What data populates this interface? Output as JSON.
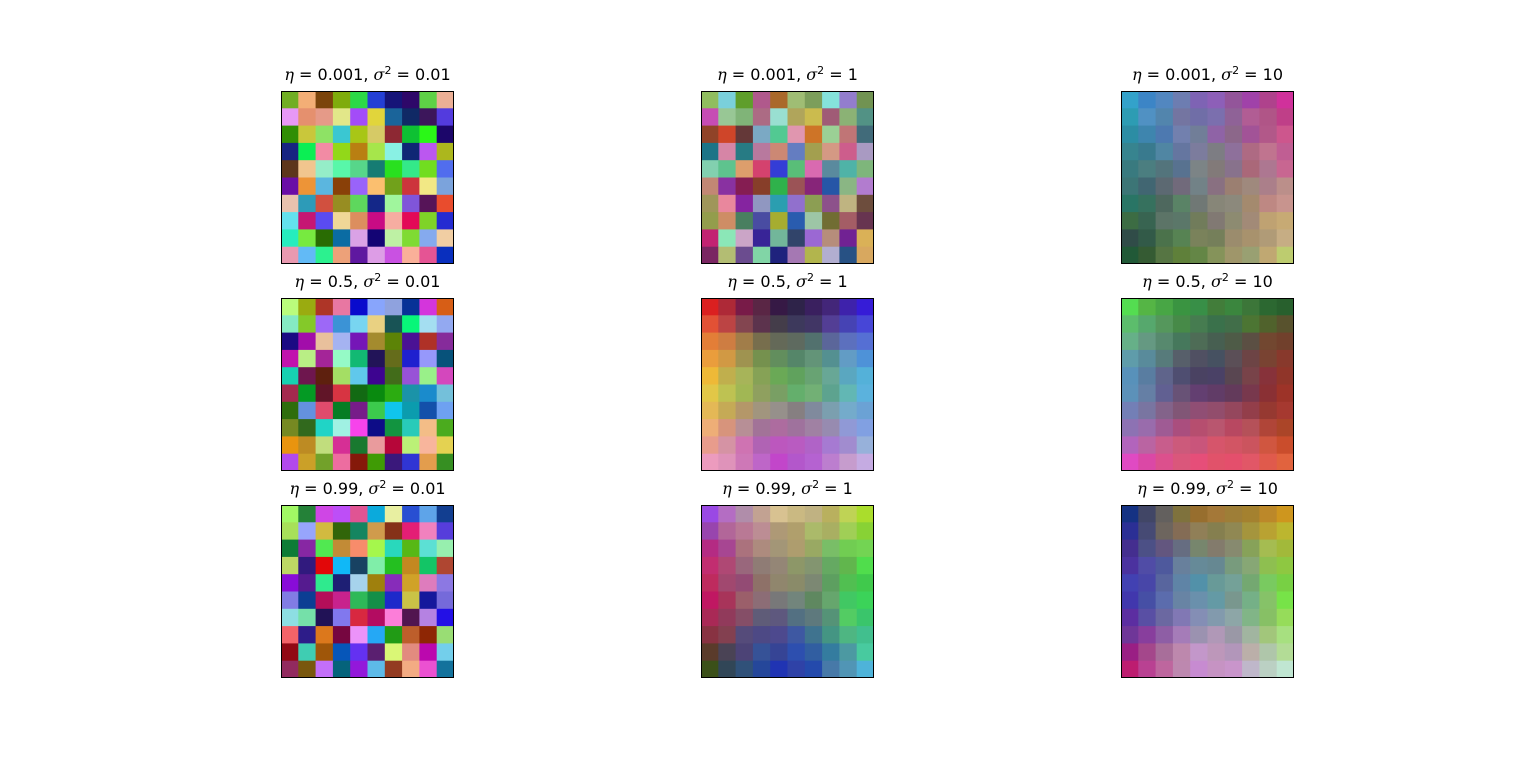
{
  "chart_data": {
    "type": "heatmap",
    "grid_size": 10,
    "panels": [
      {
        "row": 0,
        "col": 0,
        "eta": "0.001",
        "sigma2": "0.01",
        "variant": "random",
        "seed": 11
      },
      {
        "row": 0,
        "col": 1,
        "eta": "0.001",
        "sigma2": "1",
        "variant": "muted",
        "seed": 23
      },
      {
        "row": 0,
        "col": 2,
        "eta": "0.001",
        "sigma2": "10",
        "corners": {
          "tl": "#3a9ed4",
          "tr": "#c2338e",
          "bl": "#2b4e2a",
          "br": "#c7c27a"
        },
        "noise": 14,
        "seed": 37
      },
      {
        "row": 1,
        "col": 0,
        "eta": "0.5",
        "sigma2": "0.01",
        "variant": "random",
        "seed": 41
      },
      {
        "row": 1,
        "col": 1,
        "eta": "0.5",
        "sigma2": "1",
        "corners": {
          "tl": "#e02828",
          "tr": "#3b1ed0",
          "bl": "#e8a4b8",
          "br": "#c0b4e0"
        },
        "midpoints": {
          "top": "#1a1a40",
          "left": "#e8e030",
          "right": "#48c8d8",
          "center": "#48c840",
          "bottom": "#b030c0"
        },
        "noise": 10,
        "seed": 53
      },
      {
        "row": 1,
        "col": 2,
        "eta": "0.5",
        "sigma2": "10",
        "corners": {
          "tl": "#58d850",
          "tr": "#2a5a28",
          "bl": "#d848c8",
          "br": "#e86038"
        },
        "midpoints": {
          "top": "#3a8040",
          "left": "#4890c8",
          "right": "#a02020",
          "center": "#3a2a68",
          "bottom": "#e05070"
        },
        "noise": 8,
        "seed": 61
      },
      {
        "row": 2,
        "col": 0,
        "eta": "0.99",
        "sigma2": "0.01",
        "variant": "random",
        "seed": 73
      },
      {
        "row": 2,
        "col": 1,
        "eta": "0.99",
        "sigma2": "1",
        "corners": {
          "tl": "#a040e0",
          "tr": "#b0d830",
          "bl": "#3a5018",
          "br": "#50b8d8"
        },
        "midpoints": {
          "top": "#e0c880",
          "left": "#e01850",
          "right": "#20d840",
          "center": "#808060",
          "bottom": "#2020c0"
        },
        "noise": 14,
        "seed": 83
      },
      {
        "row": 2,
        "col": 2,
        "eta": "0.99",
        "sigma2": "10",
        "corners": {
          "tl": "#1a3a88",
          "tr": "#d8a028",
          "bl": "#b81870",
          "br": "#c0e8c8"
        },
        "midpoints": {
          "top": "#a87828",
          "left": "#3840b8",
          "right": "#68e030",
          "center": "#4898b8",
          "bottom": "#c898d8"
        },
        "noise": 10,
        "seed": 97
      }
    ]
  }
}
